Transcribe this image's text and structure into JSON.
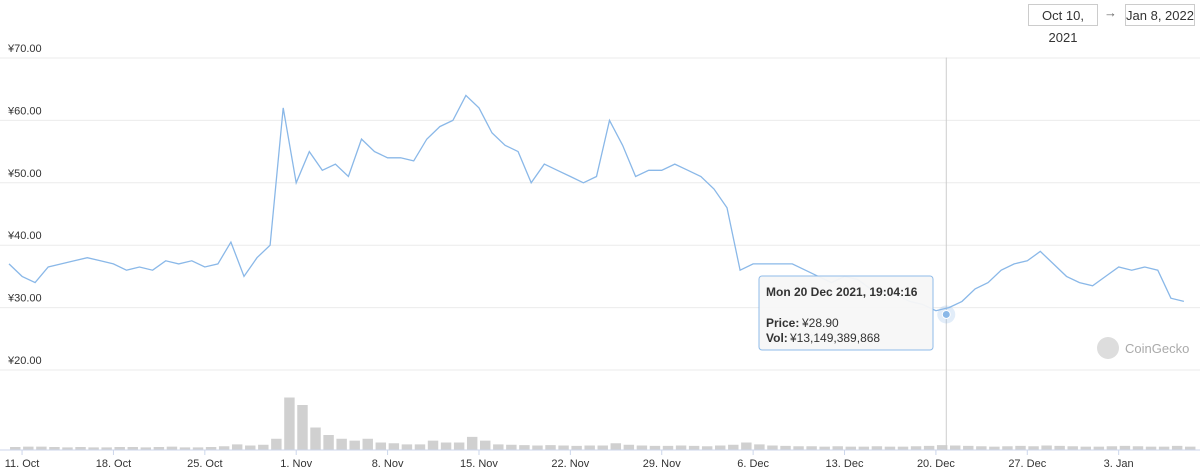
{
  "date_range": {
    "from": "Oct 10, 2021",
    "separator": "→",
    "to": "Jan 8, 2022"
  },
  "chart_data": {
    "type": "line",
    "x": [
      "2021-10-10",
      "2021-10-11",
      "2021-10-12",
      "2021-10-13",
      "2021-10-14",
      "2021-10-15",
      "2021-10-16",
      "2021-10-17",
      "2021-10-18",
      "2021-10-19",
      "2021-10-20",
      "2021-10-21",
      "2021-10-22",
      "2021-10-23",
      "2021-10-24",
      "2021-10-25",
      "2021-10-26",
      "2021-10-27",
      "2021-10-28",
      "2021-10-29",
      "2021-10-30",
      "2021-10-31",
      "2021-11-01",
      "2021-11-02",
      "2021-11-03",
      "2021-11-04",
      "2021-11-05",
      "2021-11-06",
      "2021-11-07",
      "2021-11-08",
      "2021-11-09",
      "2021-11-10",
      "2021-11-11",
      "2021-11-12",
      "2021-11-13",
      "2021-11-14",
      "2021-11-15",
      "2021-11-16",
      "2021-11-17",
      "2021-11-18",
      "2021-11-19",
      "2021-11-20",
      "2021-11-21",
      "2021-11-22",
      "2021-11-23",
      "2021-11-24",
      "2021-11-25",
      "2021-11-26",
      "2021-11-27",
      "2021-11-28",
      "2021-11-29",
      "2021-11-30",
      "2021-12-01",
      "2021-12-02",
      "2021-12-03",
      "2021-12-04",
      "2021-12-05",
      "2021-12-06",
      "2021-12-07",
      "2021-12-08",
      "2021-12-09",
      "2021-12-10",
      "2021-12-11",
      "2021-12-12",
      "2021-12-13",
      "2021-12-14",
      "2021-12-15",
      "2021-12-16",
      "2021-12-17",
      "2021-12-18",
      "2021-12-19",
      "2021-12-20",
      "2021-12-21",
      "2021-12-22",
      "2021-12-23",
      "2021-12-24",
      "2021-12-25",
      "2021-12-26",
      "2021-12-27",
      "2021-12-28",
      "2021-12-29",
      "2021-12-30",
      "2021-12-31",
      "2022-01-01",
      "2022-01-02",
      "2022-01-03",
      "2022-01-04",
      "2022-01-05",
      "2022-01-06",
      "2022-01-07",
      "2022-01-08"
    ],
    "series": [
      {
        "color": "#8ab8e8",
        "values": [
          37,
          35,
          34,
          36.5,
          37,
          37.5,
          38,
          37.5,
          37,
          36,
          36.5,
          36,
          37.5,
          37,
          37.5,
          36.5,
          37,
          40.5,
          35,
          38,
          40,
          62,
          50,
          55,
          52,
          53,
          51,
          57,
          55,
          54,
          54,
          53.5,
          57,
          59,
          60,
          64,
          62,
          58,
          56,
          55,
          50,
          53,
          52,
          51,
          50,
          51,
          60,
          56,
          51,
          52,
          52,
          53,
          52,
          51,
          49,
          46,
          36,
          37,
          37,
          37,
          37,
          36,
          35,
          34,
          35,
          34.5,
          33,
          32.5,
          32,
          31,
          30.5,
          29.5,
          30,
          31,
          33,
          34,
          36,
          37,
          37.5,
          39,
          37,
          35,
          34,
          33.5,
          35,
          36.5,
          36,
          36.5,
          36,
          31.5,
          31
        ]
      },
      {
        "color": "#c4c4c4",
        "axis": "volume",
        "values": [
          8000000000,
          9000000000,
          9000000000,
          8000000000,
          7000000000,
          8000000000,
          7000000000,
          7000000000,
          8000000000,
          8000000000,
          7000000000,
          8000000000,
          9000000000,
          7000000000,
          7000000000,
          8000000000,
          10000000000,
          15000000000,
          12000000000,
          14000000000,
          30000000000,
          140000000000,
          120000000000,
          60000000000,
          40000000000,
          30000000000,
          25000000000,
          30000000000,
          20000000000,
          18000000000,
          15000000000,
          15000000000,
          25000000000,
          20000000000,
          20000000000,
          35000000000,
          25000000000,
          15000000000,
          14000000000,
          13000000000,
          12000000000,
          13000000000,
          12000000000,
          11000000000,
          12000000000,
          12000000000,
          18000000000,
          14000000000,
          12000000000,
          11000000000,
          11000000000,
          12000000000,
          11000000000,
          10000000000,
          12000000000,
          14000000000,
          20000000000,
          15000000000,
          12000000000,
          11000000000,
          10000000000,
          10000000000,
          9000000000,
          10000000000,
          9000000000,
          9000000000,
          10000000000,
          9000000000,
          9000000000,
          10000000000,
          11000000000,
          13000000000,
          12000000000,
          11000000000,
          10000000000,
          9000000000,
          10000000000,
          11000000000,
          10000000000,
          12000000000,
          11000000000,
          10000000000,
          9000000000,
          9000000000,
          10000000000,
          11000000000,
          10000000000,
          9000000000,
          9000000000,
          11000000000,
          9000000000
        ]
      }
    ],
    "xlim": [
      "2021-10-10",
      "2022-01-09"
    ],
    "xticks": [
      {
        "value": "2021-10-11",
        "label": "11. Oct"
      },
      {
        "value": "2021-10-18",
        "label": "18. Oct"
      },
      {
        "value": "2021-10-25",
        "label": "25. Oct"
      },
      {
        "value": "2021-11-01",
        "label": "1. Nov"
      },
      {
        "value": "2021-11-08",
        "label": "8. Nov"
      },
      {
        "value": "2021-11-15",
        "label": "15. Nov"
      },
      {
        "value": "2021-11-22",
        "label": "22. Nov"
      },
      {
        "value": "2021-11-29",
        "label": "29. Nov"
      },
      {
        "value": "2021-12-06",
        "label": "6. Dec"
      },
      {
        "value": "2021-12-13",
        "label": "13. Dec"
      },
      {
        "value": "2021-12-20",
        "label": "20. Dec"
      },
      {
        "value": "2021-12-27",
        "label": "27. Dec"
      },
      {
        "value": "2022-01-03",
        "label": "3. Jan"
      }
    ],
    "ylim": [
      20,
      72
    ],
    "yticks": [
      {
        "value": 20,
        "label": "¥20.00"
      },
      {
        "value": 30,
        "label": "¥30.00"
      },
      {
        "value": 40,
        "label": "¥40.00"
      },
      {
        "value": 50,
        "label": "¥50.00"
      },
      {
        "value": 60,
        "label": "¥60.00"
      },
      {
        "value": 70,
        "label": "¥70.00"
      }
    ],
    "volume_lim": [
      0,
      160000000000
    ],
    "grid": true,
    "tooltip": {
      "title": "Mon 20 Dec 2021, 19:04:16",
      "x": "2021-12-20T19:04:16",
      "price_caption": "Price:",
      "price": {
        "value": 28.9,
        "label": "¥28.90"
      },
      "volume_caption": "Vol:",
      "volume": {
        "value": 13149389868,
        "label": "¥13,149,389,868"
      }
    },
    "watermark": "CoinGecko"
  }
}
